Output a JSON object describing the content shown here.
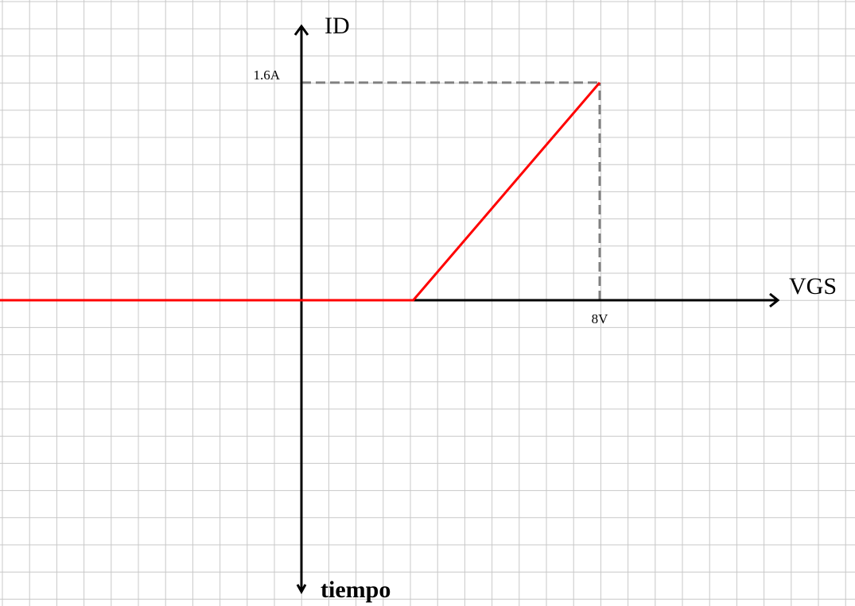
{
  "chart_data": {
    "type": "line",
    "xlabel": "VGS",
    "ylabel": "ID",
    "y_negative_label": "tiempo",
    "x_tick_labels": [
      "8V"
    ],
    "y_tick_labels": [
      "1.6A"
    ],
    "x_ticks": [
      8
    ],
    "y_ticks": [
      1.6
    ],
    "xlim": [
      -10,
      17.5
    ],
    "ylim": [
      -2.1,
      2.0
    ],
    "grid": true,
    "series": [
      {
        "name": "",
        "color": "#ff0000",
        "points": [
          {
            "x": -10,
            "y": 0
          },
          {
            "x": 3,
            "y": 0
          },
          {
            "x": 8,
            "y": 1.6
          }
        ]
      }
    ],
    "reference_lines": [
      {
        "type": "horizontal",
        "y": 1.6,
        "x_from": 0,
        "x_to": 8,
        "style": "dashed",
        "color": "#808080"
      },
      {
        "type": "vertical",
        "x": 8,
        "y_from": 0,
        "y_to": 1.6,
        "style": "dashed",
        "color": "#808080"
      }
    ],
    "colors": {
      "grid": "#c8c8c8",
      "axis": "#000000",
      "series": "#ff0000",
      "guide": "#808080"
    }
  }
}
